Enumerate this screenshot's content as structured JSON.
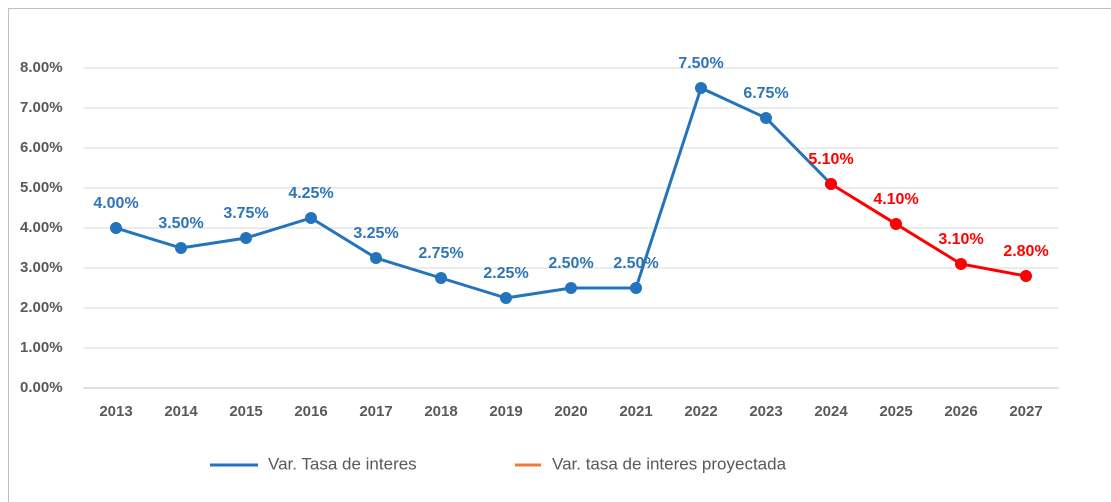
{
  "chart_data": {
    "type": "line",
    "categories": [
      "2013",
      "2014",
      "2015",
      "2016",
      "2017",
      "2018",
      "2019",
      "2020",
      "2021",
      "2022",
      "2023",
      "2024",
      "2025",
      "2026",
      "2027"
    ],
    "series": [
      {
        "name": "Var. Tasa de interes",
        "color": "#2474bd",
        "label_color": "#2e75b6",
        "values": [
          4.0,
          3.5,
          3.75,
          4.25,
          3.25,
          2.75,
          2.25,
          2.5,
          2.5,
          7.5,
          6.75,
          5.1,
          null,
          null,
          null
        ],
        "value_labels": [
          "4.00%",
          "3.50%",
          "3.75%",
          "4.25%",
          "3.25%",
          "2.75%",
          "2.25%",
          "2.50%",
          "2.50%",
          "7.50%",
          "6.75%",
          null,
          null,
          null,
          null
        ]
      },
      {
        "name": "Var. tasa de interes proyectada",
        "color": "#ff0000",
        "legend_color": "#ed7d31",
        "label_color": "#ff0000",
        "values": [
          null,
          null,
          null,
          null,
          null,
          null,
          null,
          null,
          null,
          null,
          null,
          5.1,
          4.1,
          3.1,
          2.8
        ],
        "value_labels": [
          null,
          null,
          null,
          null,
          null,
          null,
          null,
          null,
          null,
          null,
          null,
          "5.10%",
          "4.10%",
          "3.10%",
          "2.80%"
        ]
      }
    ],
    "ylim": [
      0,
      8
    ],
    "yticks": [
      {
        "value": 0,
        "label": "0.00%"
      },
      {
        "value": 1,
        "label": "1.00%"
      },
      {
        "value": 2,
        "label": "2.00%"
      },
      {
        "value": 3,
        "label": "3.00%"
      },
      {
        "value": 4,
        "label": "4.00%"
      },
      {
        "value": 5,
        "label": "5.00%"
      },
      {
        "value": 6,
        "label": "6.00%"
      },
      {
        "value": 7,
        "label": "7.00%"
      },
      {
        "value": 8,
        "label": "8.00%"
      }
    ],
    "grid": true,
    "legend": "bottom"
  }
}
